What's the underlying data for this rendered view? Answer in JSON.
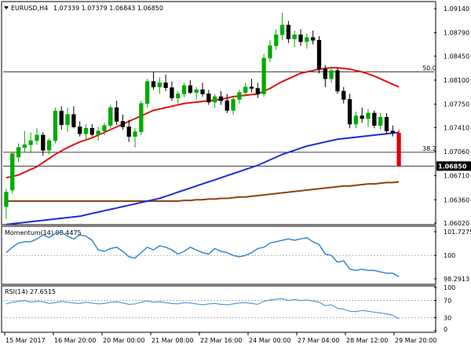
{
  "chart_data": {
    "type": "candlestick",
    "symbol": "EURUSD,H4",
    "ohlc_header": "1.07339 1.07379 1.06843 1.06850",
    "last_price_label": "1.06850",
    "price_axis_labels": [
      "1.09140",
      "1.08790",
      "1.08450",
      "1.08100",
      "1.07750",
      "1.07410",
      "1.07060",
      "1.06710",
      "1.06360",
      "1.06020"
    ],
    "ylim": [
      1.0602,
      1.0922
    ],
    "candles": [
      {
        "o": 1.0626,
        "h": 1.0652,
        "l": 1.0608,
        "c": 1.0647
      },
      {
        "o": 1.065,
        "h": 1.0705,
        "l": 1.0645,
        "c": 1.0703
      },
      {
        "o": 1.0698,
        "h": 1.0718,
        "l": 1.0691,
        "c": 1.0712
      },
      {
        "o": 1.0712,
        "h": 1.0736,
        "l": 1.0705,
        "c": 1.0716
      },
      {
        "o": 1.0716,
        "h": 1.0734,
        "l": 1.0704,
        "c": 1.0722
      },
      {
        "o": 1.0722,
        "h": 1.074,
        "l": 1.0716,
        "c": 1.073
      },
      {
        "o": 1.073,
        "h": 1.0734,
        "l": 1.07,
        "c": 1.0708
      },
      {
        "o": 1.0708,
        "h": 1.0725,
        "l": 1.0702,
        "c": 1.0722
      },
      {
        "o": 1.0722,
        "h": 1.077,
        "l": 1.0718,
        "c": 1.0765
      },
      {
        "o": 1.0765,
        "h": 1.0772,
        "l": 1.0738,
        "c": 1.0745
      },
      {
        "o": 1.0745,
        "h": 1.077,
        "l": 1.0735,
        "c": 1.076
      },
      {
        "o": 1.076,
        "h": 1.0772,
        "l": 1.074,
        "c": 1.0742
      },
      {
        "o": 1.0742,
        "h": 1.075,
        "l": 1.0728,
        "c": 1.0732
      },
      {
        "o": 1.0732,
        "h": 1.0746,
        "l": 1.0722,
        "c": 1.074
      },
      {
        "o": 1.074,
        "h": 1.0746,
        "l": 1.0728,
        "c": 1.0731
      },
      {
        "o": 1.0731,
        "h": 1.0742,
        "l": 1.0722,
        "c": 1.0736
      },
      {
        "o": 1.0736,
        "h": 1.0748,
        "l": 1.073,
        "c": 1.0744
      },
      {
        "o": 1.0744,
        "h": 1.0774,
        "l": 1.074,
        "c": 1.077
      },
      {
        "o": 1.077,
        "h": 1.078,
        "l": 1.0745,
        "c": 1.075
      },
      {
        "o": 1.075,
        "h": 1.076,
        "l": 1.0738,
        "c": 1.0742
      },
      {
        "o": 1.0742,
        "h": 1.0752,
        "l": 1.072,
        "c": 1.0728
      },
      {
        "o": 1.0728,
        "h": 1.074,
        "l": 1.0712,
        "c": 1.0735
      },
      {
        "o": 1.0735,
        "h": 1.078,
        "l": 1.073,
        "c": 1.0776
      },
      {
        "o": 1.0776,
        "h": 1.0812,
        "l": 1.077,
        "c": 1.0808
      },
      {
        "o": 1.0808,
        "h": 1.0822,
        "l": 1.0796,
        "c": 1.08
      },
      {
        "o": 1.08,
        "h": 1.0814,
        "l": 1.079,
        "c": 1.0806
      },
      {
        "o": 1.0806,
        "h": 1.0818,
        "l": 1.0794,
        "c": 1.0799
      },
      {
        "o": 1.0799,
        "h": 1.0808,
        "l": 1.078,
        "c": 1.0784
      },
      {
        "o": 1.0784,
        "h": 1.0794,
        "l": 1.0776,
        "c": 1.079
      },
      {
        "o": 1.079,
        "h": 1.0806,
        "l": 1.0785,
        "c": 1.0802
      },
      {
        "o": 1.0802,
        "h": 1.081,
        "l": 1.079,
        "c": 1.0792
      },
      {
        "o": 1.0792,
        "h": 1.08,
        "l": 1.0782,
        "c": 1.0796
      },
      {
        "o": 1.0796,
        "h": 1.0806,
        "l": 1.0786,
        "c": 1.079
      },
      {
        "o": 1.079,
        "h": 1.0796,
        "l": 1.0774,
        "c": 1.0778
      },
      {
        "o": 1.0778,
        "h": 1.079,
        "l": 1.077,
        "c": 1.0786
      },
      {
        "o": 1.0786,
        "h": 1.0794,
        "l": 1.0774,
        "c": 1.078
      },
      {
        "o": 1.078,
        "h": 1.079,
        "l": 1.0762,
        "c": 1.0766
      },
      {
        "o": 1.0766,
        "h": 1.0786,
        "l": 1.076,
        "c": 1.0782
      },
      {
        "o": 1.0782,
        "h": 1.0796,
        "l": 1.0776,
        "c": 1.0792
      },
      {
        "o": 1.0792,
        "h": 1.0806,
        "l": 1.0786,
        "c": 1.08
      },
      {
        "o": 1.08,
        "h": 1.0812,
        "l": 1.0792,
        "c": 1.0798
      },
      {
        "o": 1.0798,
        "h": 1.0806,
        "l": 1.0784,
        "c": 1.079
      },
      {
        "o": 1.079,
        "h": 1.0848,
        "l": 1.0786,
        "c": 1.0842
      },
      {
        "o": 1.0842,
        "h": 1.0868,
        "l": 1.0836,
        "c": 1.086
      },
      {
        "o": 1.086,
        "h": 1.0884,
        "l": 1.0854,
        "c": 1.0876
      },
      {
        "o": 1.0876,
        "h": 1.0908,
        "l": 1.0868,
        "c": 1.089
      },
      {
        "o": 1.089,
        "h": 1.0896,
        "l": 1.0864,
        "c": 1.087
      },
      {
        "o": 1.087,
        "h": 1.0882,
        "l": 1.0858,
        "c": 1.0876
      },
      {
        "o": 1.0876,
        "h": 1.0884,
        "l": 1.086,
        "c": 1.0866
      },
      {
        "o": 1.0866,
        "h": 1.0878,
        "l": 1.0856,
        "c": 1.0872
      },
      {
        "o": 1.0872,
        "h": 1.0882,
        "l": 1.0862,
        "c": 1.0868
      },
      {
        "o": 1.0868,
        "h": 1.0874,
        "l": 1.082,
        "c": 1.0826
      },
      {
        "o": 1.0826,
        "h": 1.0832,
        "l": 1.08,
        "c": 1.0812
      },
      {
        "o": 1.0812,
        "h": 1.083,
        "l": 1.0806,
        "c": 1.0824
      },
      {
        "o": 1.0824,
        "h": 1.0828,
        "l": 1.079,
        "c": 1.0794
      },
      {
        "o": 1.0794,
        "h": 1.08,
        "l": 1.0776,
        "c": 1.0782
      },
      {
        "o": 1.0782,
        "h": 1.079,
        "l": 1.074,
        "c": 1.0746
      },
      {
        "o": 1.0746,
        "h": 1.0764,
        "l": 1.074,
        "c": 1.0758
      },
      {
        "o": 1.0758,
        "h": 1.077,
        "l": 1.0748,
        "c": 1.0754
      },
      {
        "o": 1.0754,
        "h": 1.0768,
        "l": 1.0742,
        "c": 1.0762
      },
      {
        "o": 1.0762,
        "h": 1.0766,
        "l": 1.074,
        "c": 1.0744
      },
      {
        "o": 1.0744,
        "h": 1.0762,
        "l": 1.0738,
        "c": 1.0756
      },
      {
        "o": 1.0756,
        "h": 1.0762,
        "l": 1.0732,
        "c": 1.0736
      },
      {
        "o": 1.0736,
        "h": 1.0744,
        "l": 1.0728,
        "c": 1.0733
      },
      {
        "o": 1.0733,
        "h": 1.0738,
        "l": 1.0684,
        "c": 1.0685
      }
    ],
    "sma20": [
      1.0668,
      1.067,
      1.0672,
      1.0676,
      1.068,
      1.0684,
      1.069,
      1.0696,
      1.0702,
      1.0707,
      1.0712,
      1.0716,
      1.072,
      1.0723,
      1.0726,
      1.073,
      1.0734,
      1.0738,
      1.0742,
      1.0746,
      1.075,
      1.0754,
      1.0758,
      1.0762,
      1.0766,
      1.0768,
      1.077,
      1.0772,
      1.0774,
      1.0776,
      1.0777,
      1.0778,
      1.0779,
      1.078,
      1.0781,
      1.0782,
      1.0784,
      1.0786,
      1.0787,
      1.0788,
      1.0789,
      1.079,
      1.0794,
      1.0798,
      1.0803,
      1.0808,
      1.0812,
      1.0816,
      1.082,
      1.0822,
      1.0824,
      1.0826,
      1.0827,
      1.0828,
      1.0828,
      1.0827,
      1.0826,
      1.0824,
      1.0822,
      1.0819,
      1.0816,
      1.0812,
      1.0808,
      1.0804,
      1.08
    ],
    "sma100": [
      1.06,
      1.0601,
      1.0602,
      1.0603,
      1.0604,
      1.0605,
      1.0606,
      1.0607,
      1.0608,
      1.0609,
      1.061,
      1.0611,
      1.0612,
      1.0614,
      1.0616,
      1.0618,
      1.062,
      1.0622,
      1.0624,
      1.0626,
      1.0628,
      1.063,
      1.0632,
      1.0634,
      1.0636,
      1.0638,
      1.0641,
      1.0644,
      1.0647,
      1.065,
      1.0653,
      1.0656,
      1.0659,
      1.0662,
      1.0665,
      1.0668,
      1.0671,
      1.0674,
      1.0677,
      1.068,
      1.0683,
      1.0686,
      1.069,
      1.0694,
      1.0698,
      1.0702,
      1.0705,
      1.0708,
      1.0711,
      1.0714,
      1.0716,
      1.0718,
      1.072,
      1.0722,
      1.0724,
      1.0725,
      1.0726,
      1.0727,
      1.0728,
      1.0729,
      1.073,
      1.0731,
      1.0732,
      1.0733,
      1.0734
    ],
    "sma200": [
      1.0634,
      1.0634,
      1.0634,
      1.0634,
      1.0634,
      1.0634,
      1.0634,
      1.0634,
      1.0634,
      1.0634,
      1.0634,
      1.0634,
      1.0634,
      1.0634,
      1.0634,
      1.0634,
      1.0634,
      1.0634,
      1.0634,
      1.0634,
      1.0634,
      1.0634,
      1.0634,
      1.0634,
      1.0634,
      1.0634,
      1.0634,
      1.0634,
      1.0634,
      1.0635,
      1.0635,
      1.0636,
      1.0636,
      1.0637,
      1.0637,
      1.0638,
      1.0638,
      1.0639,
      1.064,
      1.064,
      1.0641,
      1.0642,
      1.0643,
      1.0644,
      1.0645,
      1.0646,
      1.0647,
      1.0648,
      1.0649,
      1.065,
      1.0651,
      1.0652,
      1.0653,
      1.0654,
      1.0655,
      1.0656,
      1.0656,
      1.0657,
      1.0658,
      1.0659,
      1.0659,
      1.066,
      1.0661,
      1.0661,
      1.0662
    ],
    "fib_levels": [
      {
        "label": "50.0",
        "price": 1.0822
      },
      {
        "label": "38.2",
        "price": 1.0705
      },
      {
        "label": "",
        "price": 1.0685
      }
    ],
    "momentum": {
      "label": "Momentum(14) 98.4475",
      "axis_labels": [
        "101.7275",
        "100",
        "98.2913"
      ],
      "ylim": [
        98.0,
        101.9
      ],
      "ref_level": 100,
      "values": [
        100.2,
        100.6,
        100.9,
        101.0,
        101.0,
        101.2,
        101.5,
        101.3,
        101.6,
        101.7,
        101.4,
        101.2,
        101.5,
        101.4,
        101.1,
        100.4,
        100.3,
        100.5,
        100.6,
        100.3,
        99.9,
        99.8,
        100.2,
        100.6,
        100.4,
        100.7,
        100.6,
        100.4,
        100.1,
        100.3,
        100.6,
        100.4,
        100.2,
        100.1,
        100.5,
        100.3,
        100.2,
        100.0,
        99.9,
        100.0,
        100.2,
        100.5,
        100.6,
        100.9,
        101.0,
        101.1,
        101.2,
        101.1,
        101.2,
        101.3,
        101.0,
        100.8,
        100.1,
        100.0,
        99.5,
        99.6,
        99.0,
        98.9,
        99.0,
        98.9,
        98.9,
        98.8,
        98.7,
        98.7,
        98.45
      ]
    },
    "rsi": {
      "label": "RSI(14) 27.6515",
      "axis_labels": [
        "100",
        "70",
        "30",
        "0"
      ],
      "ylim": [
        0,
        100
      ],
      "levels": [
        70,
        30
      ],
      "values": [
        62,
        66,
        68,
        70,
        66,
        68,
        67,
        63,
        65,
        68,
        66,
        64,
        63,
        66,
        64,
        62,
        63,
        66,
        67,
        64,
        61,
        62,
        66,
        69,
        66,
        67,
        65,
        63,
        62,
        65,
        64,
        62,
        60,
        62,
        63,
        61,
        60,
        62,
        64,
        65,
        63,
        61,
        68,
        71,
        73,
        74,
        70,
        72,
        70,
        71,
        69,
        66,
        58,
        60,
        52,
        50,
        45,
        44,
        47,
        45,
        43,
        41,
        39,
        36,
        27.65
      ]
    },
    "x_tick_labels": [
      "15 Mar 2017",
      "16 Mar 20:00",
      "20 Mar 00:00",
      "21 Mar 08:00",
      "22 Mar 16:00",
      "24 Mar 00:00",
      "27 Mar 04:00",
      "28 Mar 12:00",
      "29 Mar 20:00"
    ],
    "colors": {
      "background": "#ffffff",
      "candle_up": "#00aa00",
      "candle_down": "#dd0000",
      "last_candle": "#dd0000",
      "sma20": "#e11111",
      "sma100": "#1a2ed6",
      "sma200": "#8b4513",
      "indicator_line": "#3a86d0",
      "grid": "#999999",
      "axis": "#000000"
    }
  }
}
